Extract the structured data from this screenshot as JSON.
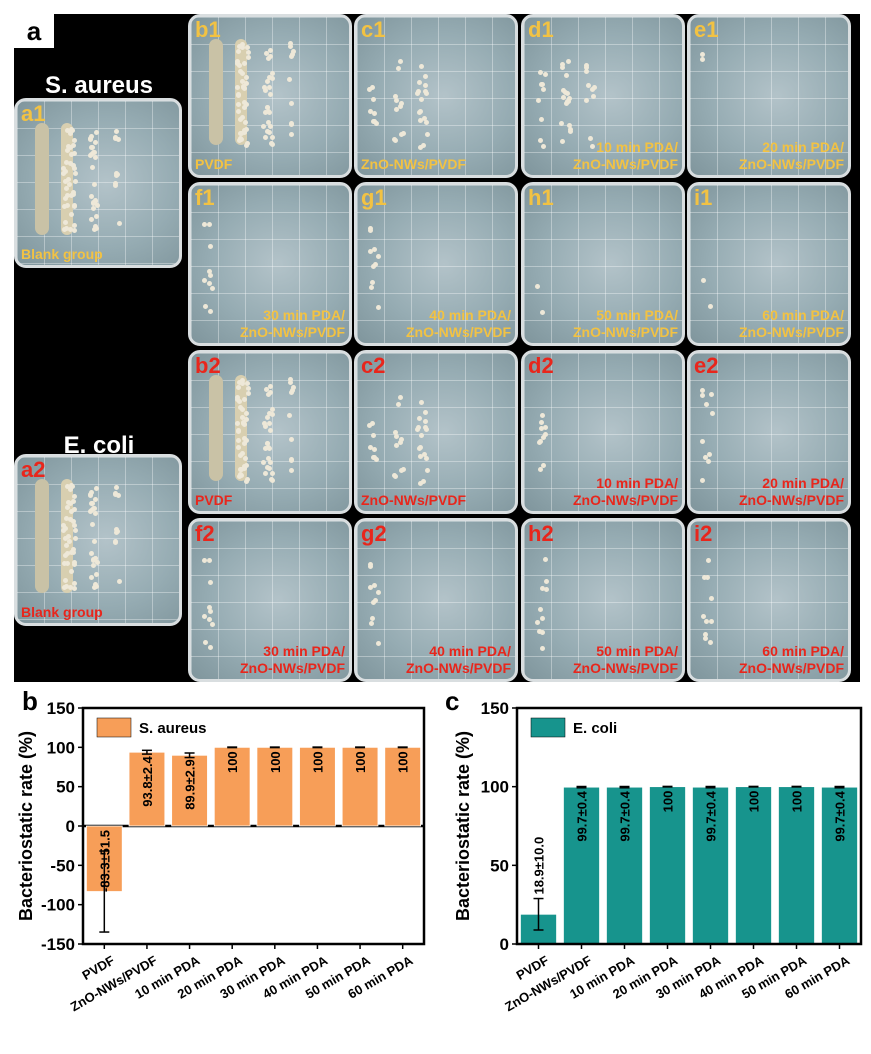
{
  "panel_a": {
    "letter": "a",
    "species_top": "S. aureus",
    "species_bottom": "E. coli",
    "plates_top": [
      {
        "tag": "a1",
        "caption": "Blank group",
        "colonies": "lawn"
      },
      {
        "tag": "b1",
        "caption": "PVDF",
        "colonies": "heavy"
      },
      {
        "tag": "c1",
        "caption": "ZnO-NWs/PVDF",
        "colonies": "medium"
      },
      {
        "tag": "d1",
        "caption": "10 min PDA/\nZnO-NWs/PVDF",
        "colonies": "medium"
      },
      {
        "tag": "e1",
        "caption": "20 min PDA/\nZnO-NWs/PVDF",
        "colonies": "none"
      },
      {
        "tag": "f1",
        "caption": "30 min PDA/\nZnO-NWs/PVDF",
        "colonies": "few"
      },
      {
        "tag": "g1",
        "caption": "40 min PDA/\nZnO-NWs/PVDF",
        "colonies": "few"
      },
      {
        "tag": "h1",
        "caption": "50 min PDA/\nZnO-NWs/PVDF",
        "colonies": "none"
      },
      {
        "tag": "i1",
        "caption": "60 min PDA/\nZnO-NWs/PVDF",
        "colonies": "none"
      }
    ],
    "plates_bottom": [
      {
        "tag": "a2",
        "caption": "Blank group",
        "colonies": "lawn"
      },
      {
        "tag": "b2",
        "caption": "PVDF",
        "colonies": "heavy"
      },
      {
        "tag": "c2",
        "caption": "ZnO-NWs/PVDF",
        "colonies": "medium"
      },
      {
        "tag": "d2",
        "caption": "10 min PDA/\nZnO-NWs/PVDF",
        "colonies": "few"
      },
      {
        "tag": "e2",
        "caption": "20 min PDA/\nZnO-NWs/PVDF",
        "colonies": "few"
      },
      {
        "tag": "f2",
        "caption": "30 min PDA/\nZnO-NWs/PVDF",
        "colonies": "few"
      },
      {
        "tag": "g2",
        "caption": "40 min PDA/\nZnO-NWs/PVDF",
        "colonies": "few"
      },
      {
        "tag": "h2",
        "caption": "50 min PDA/\nZnO-NWs/PVDF",
        "colonies": "few"
      },
      {
        "tag": "i2",
        "caption": "60 min PDA/\nZnO-NWs/PVDF",
        "colonies": "few"
      }
    ],
    "colors": {
      "top_label": "#f2c243",
      "bottom_label": "#e8261c"
    }
  },
  "chart_data": [
    {
      "panel": "b",
      "type": "bar",
      "categories": [
        "PVDF",
        "ZnO-NWs/PVDF",
        "10 min PDA",
        "20 min PDA",
        "30 min PDA",
        "40 min PDA",
        "50 min PDA",
        "60 min PDA"
      ],
      "series": [
        {
          "name": "S. aureus",
          "values": [
            -83.3,
            93.8,
            89.9,
            100,
            100,
            100,
            100,
            100
          ],
          "errors": [
            51.5,
            2.4,
            2.9,
            0,
            0,
            0,
            0,
            0
          ]
        }
      ],
      "bar_labels": [
        "-83.3±51.5",
        "93.8±2.4",
        "89.9±2.9",
        "100",
        "100",
        "100",
        "100",
        "100"
      ],
      "ylabel": "Bacteriostatic rate (%)",
      "ylim": [
        -150,
        150
      ],
      "yticks": [
        -150,
        -100,
        -50,
        0,
        50,
        100,
        150
      ],
      "color": "#f79e58",
      "legend": "top-left"
    },
    {
      "panel": "c",
      "type": "bar",
      "categories": [
        "PVDF",
        "ZnO-NWs/PVDF",
        "10 min PDA",
        "20 min PDA",
        "30 min PDA",
        "40 min PDA",
        "50 min PDA",
        "60 min PDA"
      ],
      "series": [
        {
          "name": "E. coli",
          "values": [
            18.9,
            99.7,
            99.7,
            100,
            99.7,
            100,
            100,
            99.7
          ],
          "errors": [
            10.0,
            0.4,
            0.4,
            0,
            0.4,
            0,
            0,
            0.4
          ]
        }
      ],
      "bar_labels": [
        "18.9±10.0",
        "99.7±0.4",
        "99.7±0.4",
        "100",
        "99.7±0.4",
        "100",
        "100",
        "99.7±0.4"
      ],
      "ylabel": "Bacteriostatic rate (%)",
      "ylim": [
        0,
        150
      ],
      "yticks": [
        0,
        50,
        100,
        150
      ],
      "color": "#17948d",
      "legend": "top-left"
    }
  ]
}
